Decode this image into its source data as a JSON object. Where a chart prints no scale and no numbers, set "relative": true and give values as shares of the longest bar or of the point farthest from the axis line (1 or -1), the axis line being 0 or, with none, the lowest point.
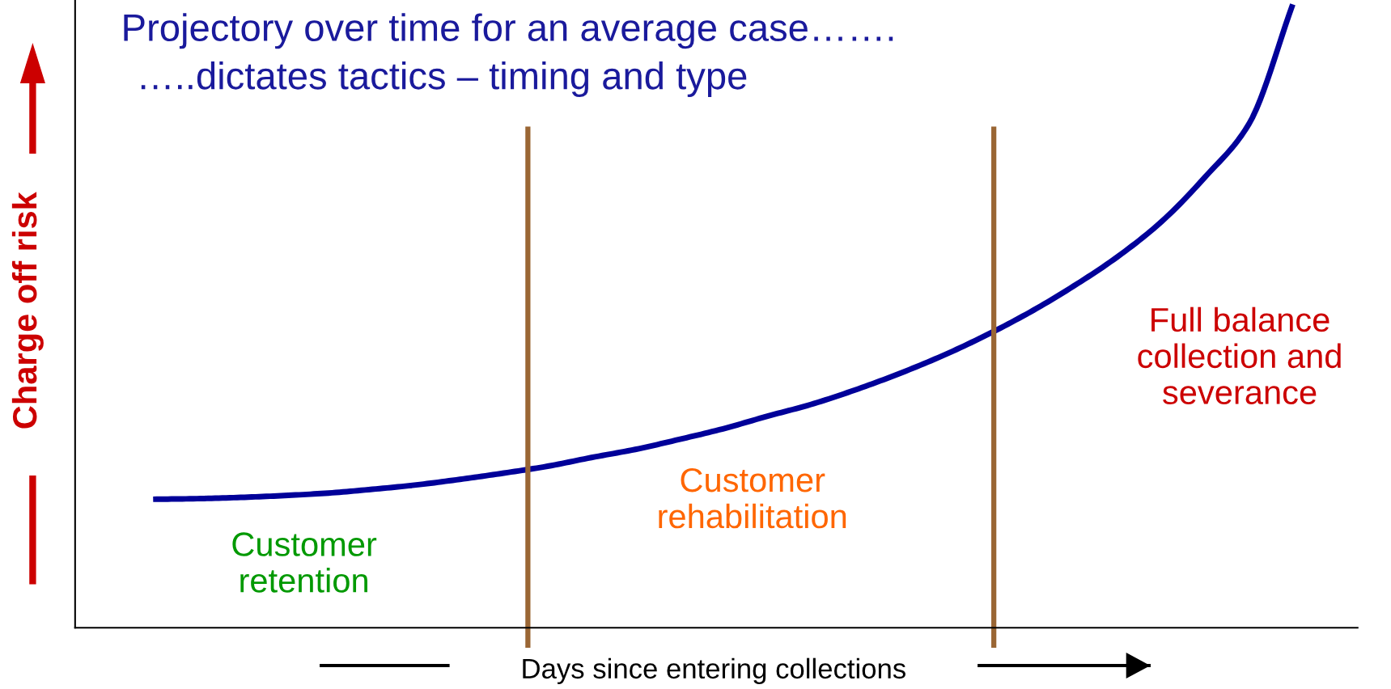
{
  "chart_data": {
    "type": "line",
    "title": "Projectory over time for an average case…….",
    "subtitle": "…..dictates tactics – timing and type",
    "xlabel": "Days since entering collections",
    "ylabel": "Charge off risk",
    "relative": true,
    "categories": [
      null,
      null,
      null,
      null,
      null,
      null,
      null,
      null,
      null,
      null,
      null,
      null,
      null,
      null,
      null,
      null,
      null,
      null,
      null,
      null,
      null,
      null,
      null,
      null,
      null,
      null,
      null
    ],
    "series": [
      {
        "color": "#000099",
        "values": [
          0.206,
          0.207,
          0.209,
          0.212,
          0.216,
          0.222,
          0.229,
          0.238,
          0.248,
          0.259,
          0.273,
          0.286,
          0.302,
          0.319,
          0.339,
          0.358,
          0.381,
          0.407,
          0.436,
          0.469,
          0.506,
          0.548,
          0.595,
          0.651,
          0.723,
          0.808,
          1.0
        ]
      }
    ],
    "annotations": [
      "Customer\nretention",
      "Customer\nrehabilitation",
      "Full balance\ncollection and\nseverance"
    ]
  }
}
